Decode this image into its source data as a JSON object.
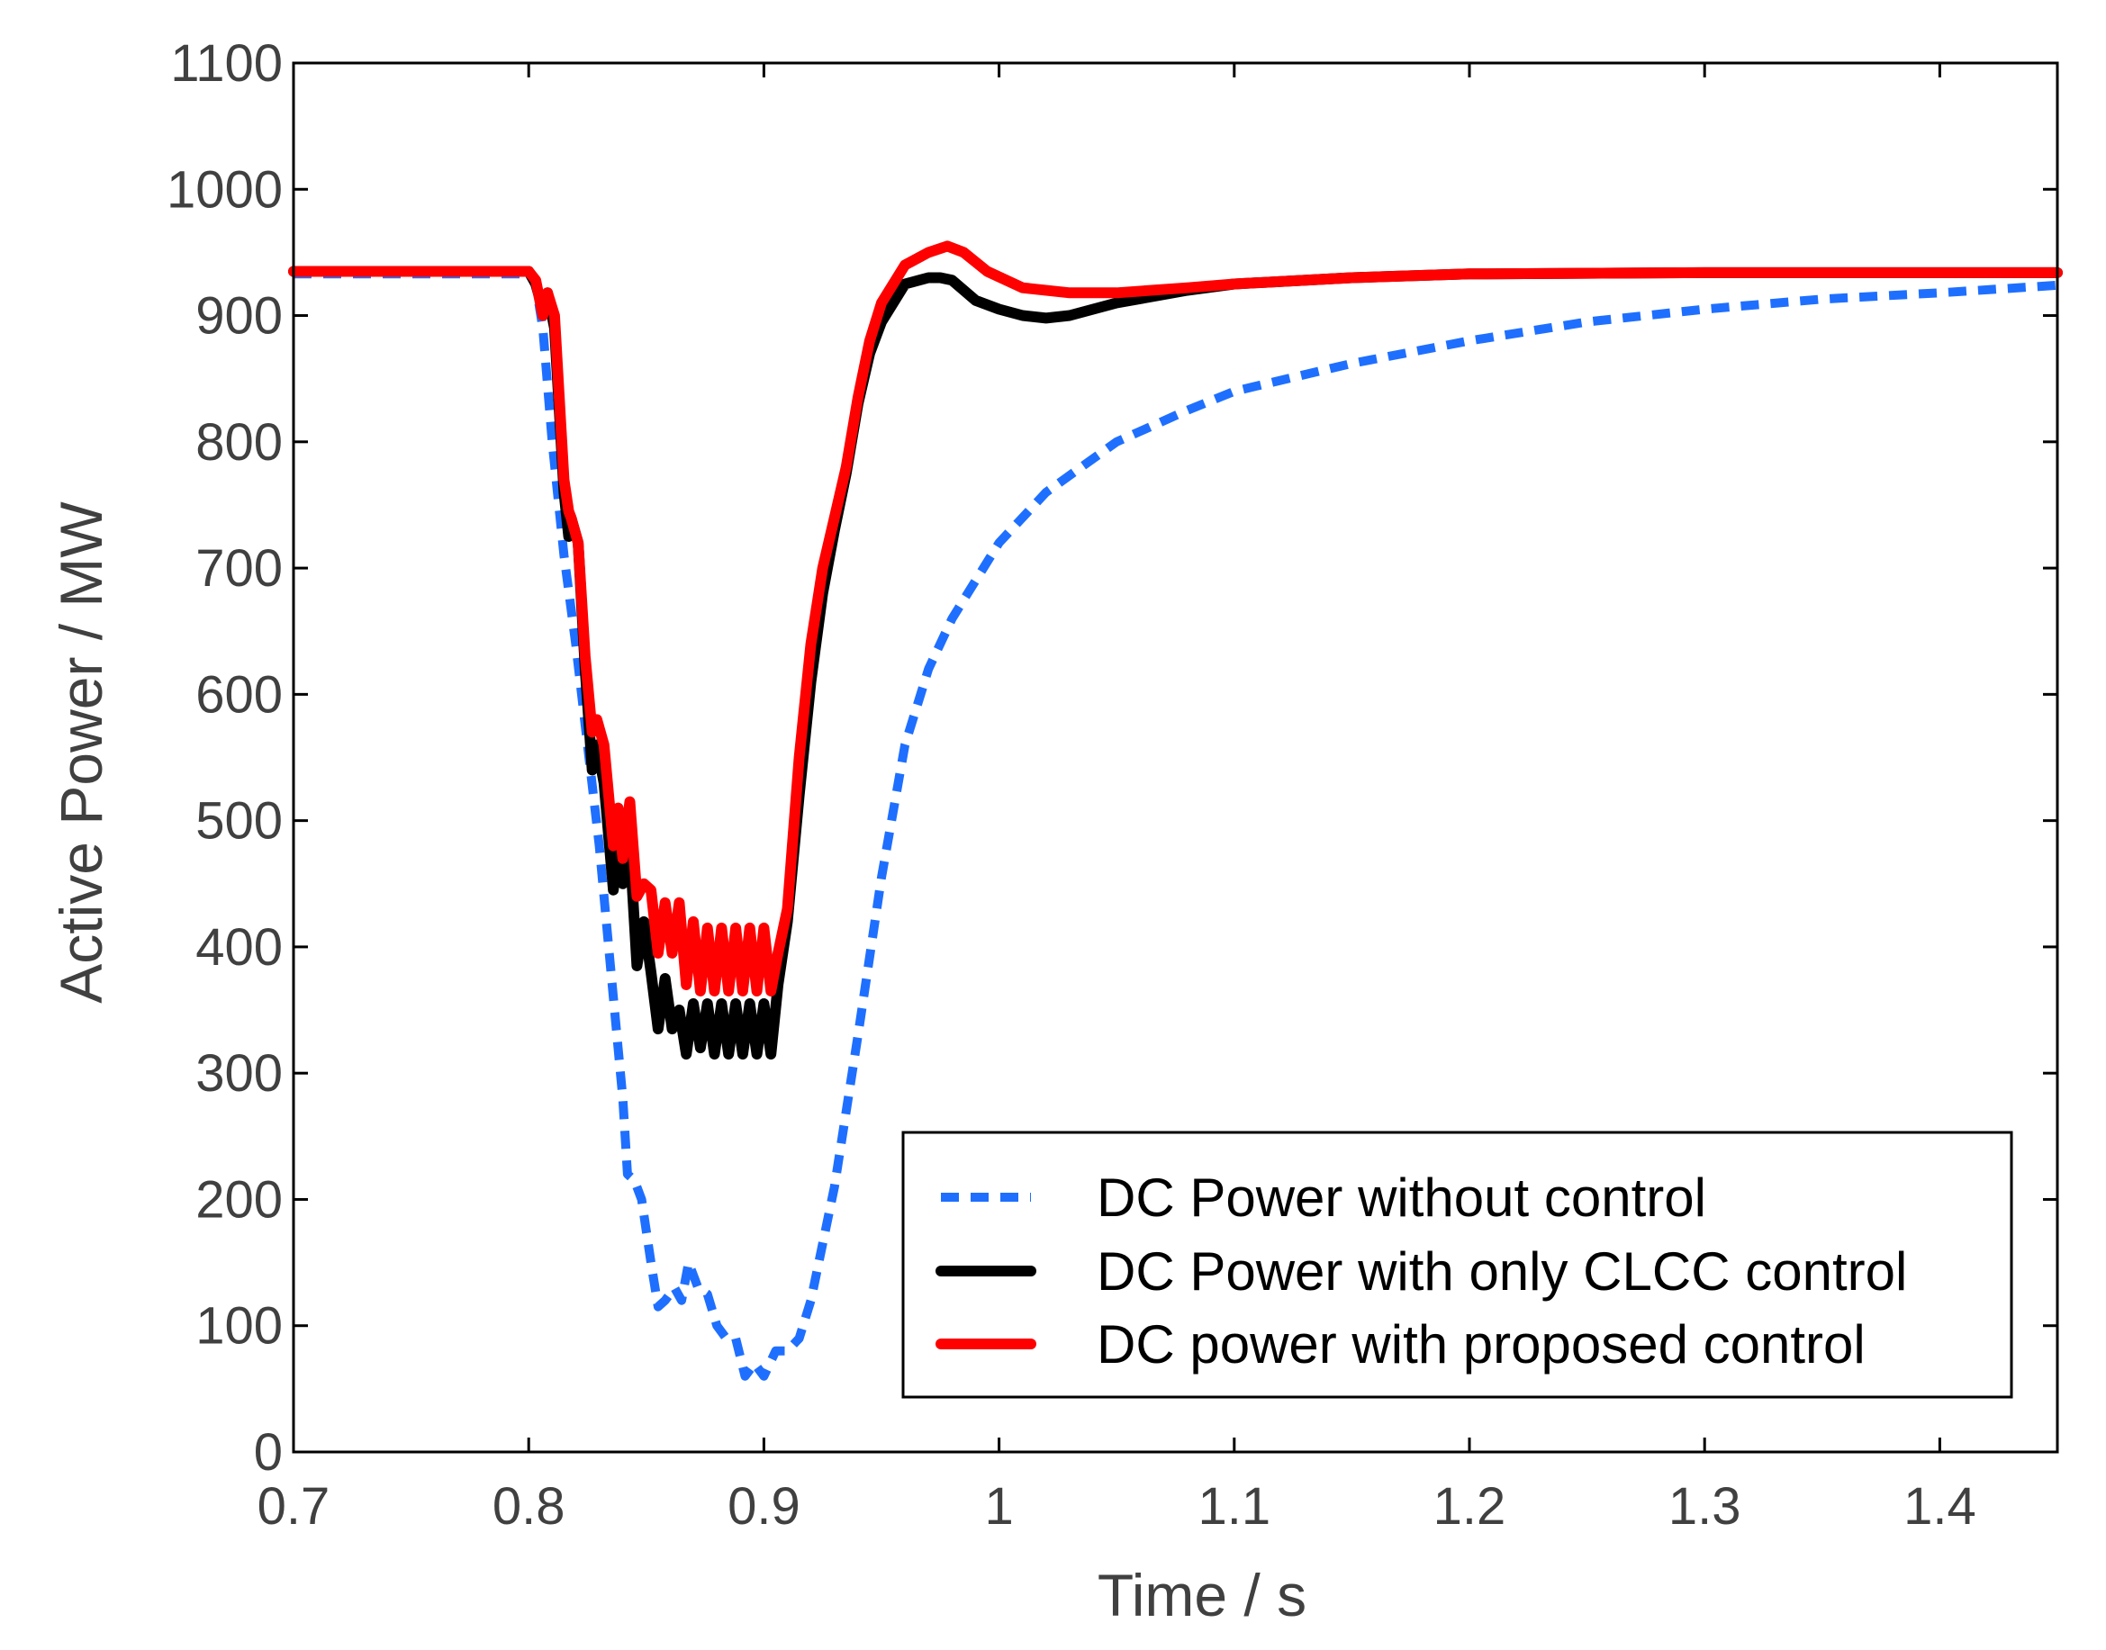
{
  "chart_data": {
    "type": "line",
    "title": "",
    "xlabel": "Time / s",
    "ylabel": "Active Power / MW",
    "xlim": [
      0.7,
      1.45
    ],
    "ylim": [
      0,
      1100
    ],
    "x_ticks": [
      0.7,
      0.8,
      0.9,
      1.0,
      1.1,
      1.2,
      1.3,
      1.4
    ],
    "x_tick_labels": [
      "0.7",
      "0.8",
      "0.9",
      "1",
      "1.1",
      "1.2",
      "1.3",
      "1.4"
    ],
    "y_ticks": [
      0,
      100,
      200,
      300,
      400,
      500,
      600,
      700,
      800,
      900,
      1000,
      1100
    ],
    "y_tick_labels": [
      "0",
      "100",
      "200",
      "300",
      "400",
      "500",
      "600",
      "700",
      "800",
      "900",
      "1000",
      "1100"
    ],
    "grid": false,
    "legend_position": "bottom-right",
    "series": [
      {
        "name": "DC Power without control",
        "color": "#1f6fff",
        "style": "dashed",
        "points": [
          [
            0.7,
            933
          ],
          [
            0.8,
            933
          ],
          [
            0.803,
            925
          ],
          [
            0.806,
            890
          ],
          [
            0.81,
            800
          ],
          [
            0.815,
            710
          ],
          [
            0.82,
            640
          ],
          [
            0.825,
            560
          ],
          [
            0.83,
            480
          ],
          [
            0.835,
            380
          ],
          [
            0.84,
            280
          ],
          [
            0.842,
            220
          ],
          [
            0.845,
            215
          ],
          [
            0.848,
            200
          ],
          [
            0.852,
            150
          ],
          [
            0.855,
            115
          ],
          [
            0.858,
            120
          ],
          [
            0.862,
            130
          ],
          [
            0.865,
            120
          ],
          [
            0.868,
            150
          ],
          [
            0.872,
            130
          ],
          [
            0.876,
            125
          ],
          [
            0.88,
            100
          ],
          [
            0.884,
            90
          ],
          [
            0.888,
            90
          ],
          [
            0.892,
            60
          ],
          [
            0.896,
            70
          ],
          [
            0.9,
            60
          ],
          [
            0.905,
            80
          ],
          [
            0.91,
            80
          ],
          [
            0.915,
            90
          ],
          [
            0.92,
            120
          ],
          [
            0.93,
            210
          ],
          [
            0.94,
            330
          ],
          [
            0.95,
            455
          ],
          [
            0.96,
            560
          ],
          [
            0.97,
            620
          ],
          [
            0.98,
            660
          ],
          [
            1.0,
            720
          ],
          [
            1.02,
            760
          ],
          [
            1.05,
            800
          ],
          [
            1.08,
            825
          ],
          [
            1.1,
            840
          ],
          [
            1.15,
            862
          ],
          [
            1.2,
            880
          ],
          [
            1.25,
            895
          ],
          [
            1.3,
            905
          ],
          [
            1.35,
            913
          ],
          [
            1.4,
            918
          ],
          [
            1.45,
            924
          ]
        ]
      },
      {
        "name": "DC Power with only CLCC control",
        "color": "#000000",
        "style": "solid",
        "points": [
          [
            0.7,
            935
          ],
          [
            0.8,
            935
          ],
          [
            0.803,
            925
          ],
          [
            0.806,
            905
          ],
          [
            0.808,
            918
          ],
          [
            0.811,
            890
          ],
          [
            0.815,
            760
          ],
          [
            0.817,
            725
          ],
          [
            0.818,
            740
          ],
          [
            0.821,
            720
          ],
          [
            0.824,
            620
          ],
          [
            0.827,
            540
          ],
          [
            0.829,
            560
          ],
          [
            0.832,
            530
          ],
          [
            0.836,
            445
          ],
          [
            0.838,
            490
          ],
          [
            0.84,
            450
          ],
          [
            0.843,
            480
          ],
          [
            0.846,
            385
          ],
          [
            0.849,
            420
          ],
          [
            0.852,
            380
          ],
          [
            0.855,
            335
          ],
          [
            0.858,
            375
          ],
          [
            0.861,
            335
          ],
          [
            0.864,
            350
          ],
          [
            0.867,
            315
          ],
          [
            0.87,
            355
          ],
          [
            0.873,
            320
          ],
          [
            0.876,
            355
          ],
          [
            0.879,
            315
          ],
          [
            0.882,
            355
          ],
          [
            0.885,
            315
          ],
          [
            0.888,
            355
          ],
          [
            0.891,
            315
          ],
          [
            0.894,
            355
          ],
          [
            0.897,
            315
          ],
          [
            0.9,
            355
          ],
          [
            0.903,
            315
          ],
          [
            0.906,
            370
          ],
          [
            0.91,
            420
          ],
          [
            0.915,
            520
          ],
          [
            0.92,
            610
          ],
          [
            0.925,
            680
          ],
          [
            0.93,
            730
          ],
          [
            0.935,
            775
          ],
          [
            0.94,
            830
          ],
          [
            0.945,
            870
          ],
          [
            0.95,
            895
          ],
          [
            0.96,
            925
          ],
          [
            0.97,
            930
          ],
          [
            0.975,
            930
          ],
          [
            0.98,
            928
          ],
          [
            0.99,
            912
          ],
          [
            1.0,
            905
          ],
          [
            1.01,
            900
          ],
          [
            1.02,
            898
          ],
          [
            1.03,
            900
          ],
          [
            1.05,
            910
          ],
          [
            1.08,
            920
          ],
          [
            1.1,
            925
          ],
          [
            1.15,
            930
          ],
          [
            1.2,
            933
          ],
          [
            1.3,
            934
          ],
          [
            1.45,
            934
          ]
        ]
      },
      {
        "name": "DC power with proposed control",
        "color": "#ff0000",
        "style": "solid",
        "points": [
          [
            0.7,
            935
          ],
          [
            0.8,
            935
          ],
          [
            0.803,
            928
          ],
          [
            0.806,
            900
          ],
          [
            0.808,
            918
          ],
          [
            0.811,
            900
          ],
          [
            0.815,
            770
          ],
          [
            0.817,
            745
          ],
          [
            0.818,
            740
          ],
          [
            0.821,
            720
          ],
          [
            0.824,
            630
          ],
          [
            0.827,
            570
          ],
          [
            0.829,
            580
          ],
          [
            0.832,
            560
          ],
          [
            0.836,
            480
          ],
          [
            0.838,
            510
          ],
          [
            0.84,
            470
          ],
          [
            0.843,
            515
          ],
          [
            0.846,
            440
          ],
          [
            0.849,
            450
          ],
          [
            0.852,
            445
          ],
          [
            0.855,
            395
          ],
          [
            0.858,
            435
          ],
          [
            0.861,
            395
          ],
          [
            0.864,
            435
          ],
          [
            0.867,
            370
          ],
          [
            0.87,
            420
          ],
          [
            0.873,
            365
          ],
          [
            0.876,
            415
          ],
          [
            0.879,
            365
          ],
          [
            0.882,
            415
          ],
          [
            0.885,
            365
          ],
          [
            0.888,
            415
          ],
          [
            0.891,
            365
          ],
          [
            0.894,
            415
          ],
          [
            0.897,
            365
          ],
          [
            0.9,
            415
          ],
          [
            0.903,
            365
          ],
          [
            0.906,
            395
          ],
          [
            0.91,
            430
          ],
          [
            0.915,
            550
          ],
          [
            0.92,
            640
          ],
          [
            0.925,
            700
          ],
          [
            0.93,
            740
          ],
          [
            0.935,
            780
          ],
          [
            0.94,
            835
          ],
          [
            0.945,
            880
          ],
          [
            0.95,
            910
          ],
          [
            0.96,
            940
          ],
          [
            0.97,
            950
          ],
          [
            0.978,
            955
          ],
          [
            0.985,
            950
          ],
          [
            0.995,
            935
          ],
          [
            1.01,
            922
          ],
          [
            1.03,
            918
          ],
          [
            1.05,
            918
          ],
          [
            1.08,
            922
          ],
          [
            1.1,
            925
          ],
          [
            1.15,
            930
          ],
          [
            1.2,
            933
          ],
          [
            1.3,
            934
          ],
          [
            1.45,
            934
          ]
        ]
      }
    ]
  }
}
